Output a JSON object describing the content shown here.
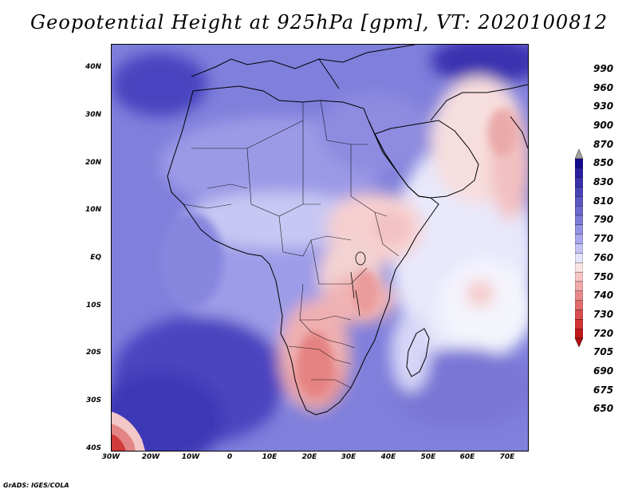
{
  "title": "Geopotential Height at 925hPa [gpm], VT: 2020100812",
  "footer": "GrADS: IGES/COLA",
  "map": {
    "region": "Africa",
    "variable": "Geopotential Height",
    "level": "925hPa",
    "units": "gpm",
    "valid_time": "2020100812",
    "lat_labels": [
      "40N",
      "30N",
      "20N",
      "10N",
      "EQ",
      "10S",
      "20S",
      "30S",
      "40S"
    ],
    "lon_labels": [
      "30W",
      "20W",
      "10W",
      "0",
      "10E",
      "20E",
      "30E",
      "40E",
      "50E",
      "60E",
      "70E"
    ],
    "lat_range": [
      -40,
      45
    ],
    "lon_range": [
      -30,
      75
    ]
  },
  "colorbar": {
    "levels": [
      "990",
      "960",
      "930",
      "900",
      "870",
      "850",
      "830",
      "810",
      "790",
      "770",
      "760",
      "750",
      "740",
      "730",
      "720",
      "705",
      "690",
      "675",
      "650"
    ],
    "colors": [
      "#140a8c",
      "#2a1f9e",
      "#3a31aa",
      "#4a43b8",
      "#5b55c4",
      "#6c68ce",
      "#7e7bd8",
      "#9391e2",
      "#a9a8ec",
      "#c4c3f4",
      "#e4e4fb",
      "#fbe4e4",
      "#f6c6c6",
      "#f0a9a9",
      "#e98a8a",
      "#e16c6c",
      "#d94f4f",
      "#cf3333",
      "#c01818"
    ],
    "over_color": "#a0a0a0",
    "under_color": "#b01010"
  }
}
